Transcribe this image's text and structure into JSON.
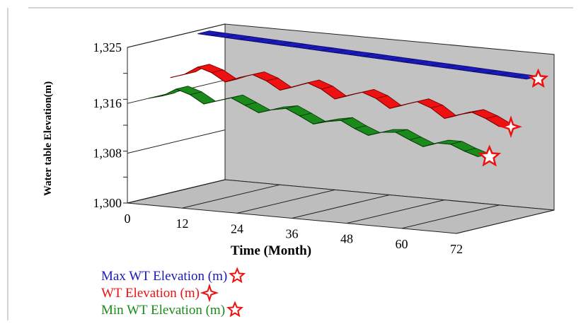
{
  "chart_data": {
    "type": "area",
    "style": "3d-ribbon",
    "title": "",
    "xlabel": "Time (Month)",
    "ylabel": "Water table Elevation(m)",
    "x_ticks": [
      "0",
      "12",
      "24",
      "36",
      "48",
      "60",
      "72"
    ],
    "y_ticks": [
      "1,300",
      "1,308",
      "1,316",
      "1,325"
    ],
    "xlim": [
      0,
      72
    ],
    "ylim": [
      1300,
      1325
    ],
    "grid": true,
    "legend_position": "bottom-left",
    "x": [
      0,
      3,
      6,
      9,
      12,
      15,
      18,
      21,
      24,
      27,
      30,
      33,
      36,
      39,
      42,
      45,
      48,
      51,
      54,
      57,
      60,
      63,
      66,
      69,
      72
    ],
    "series": [
      {
        "name": "Max WT Elevation (m)",
        "color": "#1a1ab8",
        "edge": "#0c0c70",
        "marker": "star-outline",
        "values": [
          1324.5,
          1324.4,
          1324.3,
          1324.2,
          1324.1,
          1324.0,
          1323.9,
          1323.8,
          1323.7,
          1323.6,
          1323.5,
          1323.4,
          1323.3,
          1323.2,
          1323.1,
          1323.0,
          1322.9,
          1322.8,
          1322.7,
          1322.6,
          1322.5,
          1322.4,
          1322.3,
          1322.2,
          1322.1
        ]
      },
      {
        "name": "WT Elevation (m)",
        "color": "#ee1111",
        "edge": "#7a0000",
        "marker": "star4-outline",
        "values": [
          1318.5,
          1319.2,
          1320.6,
          1319.9,
          1318.6,
          1319.5,
          1320.2,
          1319.4,
          1318.1,
          1318.9,
          1319.7,
          1318.9,
          1317.5,
          1318.3,
          1319.0,
          1318.2,
          1316.8,
          1317.6,
          1318.3,
          1317.5,
          1316.0,
          1316.8,
          1317.4,
          1316.6,
          1315.5
        ]
      },
      {
        "name": "Min WT Elevation  (m)",
        "color": "#1a8a1a",
        "edge": "#063a06",
        "marker": "star-outline",
        "values": [
          1316.0,
          1316.6,
          1317.9,
          1317.2,
          1315.9,
          1316.6,
          1317.3,
          1316.3,
          1315.3,
          1316.0,
          1316.4,
          1315.4,
          1314.3,
          1314.9,
          1315.3,
          1314.2,
          1313.3,
          1314.0,
          1314.2,
          1313.2,
          1312.3,
          1313.1,
          1313.1,
          1312.2,
          1311.5
        ]
      }
    ]
  }
}
